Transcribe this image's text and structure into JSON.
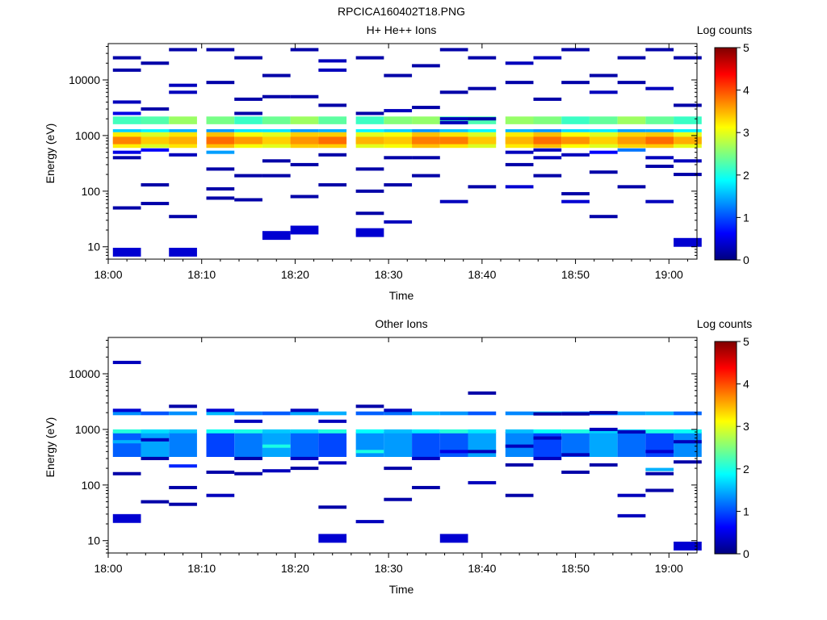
{
  "figure_title": "RPCICA160402T18.PNG",
  "colormap": {
    "stops": [
      "#00007f",
      "#0000ff",
      "#007fff",
      "#00ffff",
      "#7fff7f",
      "#ffff00",
      "#ff7f00",
      "#ff0000",
      "#7f0000"
    ],
    "tick_labels": [
      "0",
      "1",
      "2",
      "3",
      "4",
      "5"
    ],
    "range": [
      0,
      5
    ]
  },
  "chart_data": [
    {
      "type": "heatmap",
      "title": "H+ He++ Ions",
      "xlabel": "Time",
      "ylabel": "Energy (eV)",
      "colorbar_label": "Log counts",
      "x_range": [
        "18:00",
        "19:03"
      ],
      "y_range": [
        6,
        45000
      ],
      "y_scale": "log",
      "x_ticks": [
        "18:00",
        "18:10",
        "18:20",
        "18:30",
        "18:40",
        "18:50",
        "19:00"
      ],
      "y_ticks": [
        "10",
        "100",
        "1000",
        "10000"
      ],
      "time_bins": [
        "18:02",
        "18:05",
        "18:08",
        "18:12",
        "18:15",
        "18:18",
        "18:21",
        "18:24",
        "18:28",
        "18:31",
        "18:34",
        "18:37",
        "18:40",
        "18:44",
        "18:47",
        "18:50",
        "18:53",
        "18:56",
        "18:59",
        "19:02"
      ],
      "band_rows": [
        {
          "e_lo": 600,
          "e_hi": 1150,
          "value": 3.2
        },
        {
          "e_lo": 700,
          "e_hi": 950,
          "value": 3.6
        },
        {
          "e_lo": 1150,
          "e_hi": 1300,
          "value": 1.6
        },
        {
          "e_lo": 1600,
          "e_hi": 2200,
          "value": 2.4
        }
      ],
      "counts": [
        {
          "bin": 0,
          "e": 4000,
          "v": 0.3
        },
        {
          "bin": 0,
          "e": 2500,
          "v": 0.5
        },
        {
          "bin": 0,
          "e": 500,
          "v": 0.5
        },
        {
          "bin": 0,
          "e": 400,
          "v": 0.2
        },
        {
          "bin": 0,
          "e": 50,
          "v": 0.2
        },
        {
          "bin": 0,
          "e": 8,
          "v": 0.4
        },
        {
          "bin": 0,
          "e": 25000,
          "v": 0.2
        },
        {
          "bin": 0,
          "e": 15000,
          "v": 0.2
        },
        {
          "bin": 1,
          "e": 20000,
          "v": 0.2
        },
        {
          "bin": 1,
          "e": 3000,
          "v": 0.2
        },
        {
          "bin": 1,
          "e": 550,
          "v": 0.6
        },
        {
          "bin": 1,
          "e": 130,
          "v": 0.2
        },
        {
          "bin": 1,
          "e": 60,
          "v": 0.2
        },
        {
          "bin": 2,
          "e": 35000,
          "v": 0.2
        },
        {
          "bin": 2,
          "e": 8000,
          "v": 0.3
        },
        {
          "bin": 2,
          "e": 6000,
          "v": 0.3
        },
        {
          "bin": 2,
          "e": 450,
          "v": 0.3
        },
        {
          "bin": 2,
          "e": 35,
          "v": 0.2
        },
        {
          "bin": 2,
          "e": 8,
          "v": 0.4
        },
        {
          "bin": 3,
          "e": 35000,
          "v": 0.2
        },
        {
          "bin": 3,
          "e": 9000,
          "v": 0.2
        },
        {
          "bin": 3,
          "e": 500,
          "v": 1.4
        },
        {
          "bin": 3,
          "e": 250,
          "v": 0.2
        },
        {
          "bin": 3,
          "e": 110,
          "v": 0.2
        },
        {
          "bin": 3,
          "e": 75,
          "v": 0.2
        },
        {
          "bin": 4,
          "e": 25000,
          "v": 0.2
        },
        {
          "bin": 4,
          "e": 4500,
          "v": 0.2
        },
        {
          "bin": 4,
          "e": 2500,
          "v": 0.2
        },
        {
          "bin": 4,
          "e": 190,
          "v": 0.2
        },
        {
          "bin": 4,
          "e": 70,
          "v": 0.2
        },
        {
          "bin": 5,
          "e": 12000,
          "v": 0.2
        },
        {
          "bin": 5,
          "e": 5000,
          "v": 0.2
        },
        {
          "bin": 5,
          "e": 350,
          "v": 0.2
        },
        {
          "bin": 5,
          "e": 190,
          "v": 0.2
        },
        {
          "bin": 5,
          "e": 16,
          "v": 0.4
        },
        {
          "bin": 6,
          "e": 35000,
          "v": 0.2
        },
        {
          "bin": 6,
          "e": 5000,
          "v": 0.2
        },
        {
          "bin": 6,
          "e": 300,
          "v": 0.2
        },
        {
          "bin": 6,
          "e": 80,
          "v": 0.2
        },
        {
          "bin": 6,
          "e": 20,
          "v": 0.4
        },
        {
          "bin": 7,
          "e": 22000,
          "v": 0.3
        },
        {
          "bin": 7,
          "e": 15000,
          "v": 0.3
        },
        {
          "bin": 7,
          "e": 3500,
          "v": 0.2
        },
        {
          "bin": 7,
          "e": 450,
          "v": 0.2
        },
        {
          "bin": 7,
          "e": 130,
          "v": 0.2
        },
        {
          "bin": 8,
          "e": 25000,
          "v": 0.2
        },
        {
          "bin": 8,
          "e": 2500,
          "v": 0.2
        },
        {
          "bin": 8,
          "e": 250,
          "v": 0.2
        },
        {
          "bin": 8,
          "e": 100,
          "v": 0.2
        },
        {
          "bin": 8,
          "e": 40,
          "v": 0.2
        },
        {
          "bin": 8,
          "e": 18,
          "v": 0.4
        },
        {
          "bin": 9,
          "e": 12000,
          "v": 0.2
        },
        {
          "bin": 9,
          "e": 2800,
          "v": 0.3
        },
        {
          "bin": 9,
          "e": 400,
          "v": 0.2
        },
        {
          "bin": 9,
          "e": 130,
          "v": 0.2
        },
        {
          "bin": 9,
          "e": 28,
          "v": 0.3
        },
        {
          "bin": 10,
          "e": 18000,
          "v": 0.2
        },
        {
          "bin": 10,
          "e": 3200,
          "v": 0.2
        },
        {
          "bin": 10,
          "e": 400,
          "v": 0.2
        },
        {
          "bin": 10,
          "e": 190,
          "v": 0.2
        },
        {
          "bin": 11,
          "e": 35000,
          "v": 0.2
        },
        {
          "bin": 11,
          "e": 6000,
          "v": 0.2
        },
        {
          "bin": 11,
          "e": 2000,
          "v": 0.3
        },
        {
          "bin": 11,
          "e": 1700,
          "v": 0.3
        },
        {
          "bin": 11,
          "e": 65,
          "v": 0.3
        },
        {
          "bin": 12,
          "e": 25000,
          "v": 0.2
        },
        {
          "bin": 12,
          "e": 7000,
          "v": 0.2
        },
        {
          "bin": 12,
          "e": 2000,
          "v": 0.2
        },
        {
          "bin": 12,
          "e": 120,
          "v": 0.2
        },
        {
          "bin": 13,
          "e": 20000,
          "v": 0.3
        },
        {
          "bin": 13,
          "e": 9000,
          "v": 0.2
        },
        {
          "bin": 13,
          "e": 500,
          "v": 0.3
        },
        {
          "bin": 13,
          "e": 300,
          "v": 0.2
        },
        {
          "bin": 13,
          "e": 120,
          "v": 0.4
        },
        {
          "bin": 14,
          "e": 25000,
          "v": 0.3
        },
        {
          "bin": 14,
          "e": 4500,
          "v": 0.2
        },
        {
          "bin": 14,
          "e": 550,
          "v": 0.3
        },
        {
          "bin": 14,
          "e": 400,
          "v": 0.3
        },
        {
          "bin": 14,
          "e": 190,
          "v": 0.2
        },
        {
          "bin": 15,
          "e": 35000,
          "v": 0.2
        },
        {
          "bin": 15,
          "e": 9000,
          "v": 0.2
        },
        {
          "bin": 15,
          "e": 450,
          "v": 0.3
        },
        {
          "bin": 15,
          "e": 90,
          "v": 0.2
        },
        {
          "bin": 15,
          "e": 65,
          "v": 0.4
        },
        {
          "bin": 16,
          "e": 12000,
          "v": 0.2
        },
        {
          "bin": 16,
          "e": 6000,
          "v": 0.3
        },
        {
          "bin": 16,
          "e": 500,
          "v": 0.6
        },
        {
          "bin": 16,
          "e": 220,
          "v": 0.2
        },
        {
          "bin": 16,
          "e": 35,
          "v": 0.2
        },
        {
          "bin": 17,
          "e": 25000,
          "v": 0.2
        },
        {
          "bin": 17,
          "e": 9000,
          "v": 0.2
        },
        {
          "bin": 17,
          "e": 550,
          "v": 1.2
        },
        {
          "bin": 17,
          "e": 120,
          "v": 0.2
        },
        {
          "bin": 18,
          "e": 35000,
          "v": 0.2
        },
        {
          "bin": 18,
          "e": 7000,
          "v": 0.3
        },
        {
          "bin": 18,
          "e": 400,
          "v": 0.3
        },
        {
          "bin": 18,
          "e": 280,
          "v": 0.2
        },
        {
          "bin": 18,
          "e": 65,
          "v": 0.3
        },
        {
          "bin": 19,
          "e": 25000,
          "v": 0.2
        },
        {
          "bin": 19,
          "e": 3500,
          "v": 0.2
        },
        {
          "bin": 19,
          "e": 350,
          "v": 0.3
        },
        {
          "bin": 19,
          "e": 200,
          "v": 0.2
        },
        {
          "bin": 19,
          "e": 12,
          "v": 0.4
        }
      ]
    },
    {
      "type": "heatmap",
      "title": "Other Ions",
      "xlabel": "Time",
      "ylabel": "Energy (eV)",
      "colorbar_label": "Log counts",
      "x_range": [
        "18:00",
        "19:03"
      ],
      "y_range": [
        6,
        45000
      ],
      "y_scale": "log",
      "x_ticks": [
        "18:00",
        "18:10",
        "18:20",
        "18:30",
        "18:40",
        "18:50",
        "19:00"
      ],
      "y_ticks": [
        "10",
        "100",
        "1000",
        "10000"
      ],
      "time_bins": [
        "18:02",
        "18:05",
        "18:08",
        "18:12",
        "18:15",
        "18:18",
        "18:21",
        "18:24",
        "18:28",
        "18:31",
        "18:34",
        "18:37",
        "18:40",
        "18:44",
        "18:47",
        "18:50",
        "18:53",
        "18:56",
        "18:59",
        "19:02"
      ],
      "band_rows": [
        {
          "e_lo": 320,
          "e_hi": 900,
          "value": 1.2
        },
        {
          "e_lo": 850,
          "e_hi": 1000,
          "value": 1.8
        },
        {
          "e_lo": 1800,
          "e_hi": 2100,
          "value": 1.3
        }
      ],
      "counts": [
        {
          "bin": 0,
          "e": 16000,
          "v": 0.3
        },
        {
          "bin": 0,
          "e": 2200,
          "v": 0.4
        },
        {
          "bin": 0,
          "e": 600,
          "v": 1.5
        },
        {
          "bin": 0,
          "e": 160,
          "v": 0.2
        },
        {
          "bin": 0,
          "e": 25,
          "v": 0.4
        },
        {
          "bin": 1,
          "e": 650,
          "v": 0.3
        },
        {
          "bin": 1,
          "e": 300,
          "v": 0.2
        },
        {
          "bin": 1,
          "e": 50,
          "v": 0.2
        },
        {
          "bin": 2,
          "e": 2600,
          "v": 0.2
        },
        {
          "bin": 2,
          "e": 220,
          "v": 0.8
        },
        {
          "bin": 2,
          "e": 90,
          "v": 0.2
        },
        {
          "bin": 2,
          "e": 45,
          "v": 0.2
        },
        {
          "bin": 3,
          "e": 2200,
          "v": 0.4
        },
        {
          "bin": 3,
          "e": 170,
          "v": 0.2
        },
        {
          "bin": 3,
          "e": 65,
          "v": 0.3
        },
        {
          "bin": 4,
          "e": 1400,
          "v": 0.3
        },
        {
          "bin": 4,
          "e": 300,
          "v": 0.2
        },
        {
          "bin": 4,
          "e": 160,
          "v": 0.2
        },
        {
          "bin": 5,
          "e": 500,
          "v": 2.0
        },
        {
          "bin": 5,
          "e": 180,
          "v": 0.3
        },
        {
          "bin": 6,
          "e": 2200,
          "v": 0.3
        },
        {
          "bin": 6,
          "e": 300,
          "v": 0.3
        },
        {
          "bin": 6,
          "e": 200,
          "v": 0.2
        },
        {
          "bin": 7,
          "e": 1400,
          "v": 0.3
        },
        {
          "bin": 7,
          "e": 250,
          "v": 0.3
        },
        {
          "bin": 7,
          "e": 40,
          "v": 0.2
        },
        {
          "bin": 7,
          "e": 11,
          "v": 0.4
        },
        {
          "bin": 8,
          "e": 2600,
          "v": 0.2
        },
        {
          "bin": 8,
          "e": 400,
          "v": 2.0
        },
        {
          "bin": 8,
          "e": 22,
          "v": 0.3
        },
        {
          "bin": 9,
          "e": 2200,
          "v": 0.3
        },
        {
          "bin": 9,
          "e": 200,
          "v": 0.2
        },
        {
          "bin": 9,
          "e": 55,
          "v": 0.2
        },
        {
          "bin": 10,
          "e": 300,
          "v": 0.3
        },
        {
          "bin": 10,
          "e": 90,
          "v": 0.2
        },
        {
          "bin": 11,
          "e": 400,
          "v": 0.5
        },
        {
          "bin": 11,
          "e": 11,
          "v": 0.4
        },
        {
          "bin": 12,
          "e": 4500,
          "v": 0.2
        },
        {
          "bin": 12,
          "e": 400,
          "v": 0.3
        },
        {
          "bin": 12,
          "e": 110,
          "v": 0.3
        },
        {
          "bin": 13,
          "e": 500,
          "v": 0.3
        },
        {
          "bin": 13,
          "e": 230,
          "v": 0.2
        },
        {
          "bin": 13,
          "e": 65,
          "v": 0.2
        },
        {
          "bin": 14,
          "e": 1900,
          "v": 0.2
        },
        {
          "bin": 14,
          "e": 700,
          "v": 0.3
        },
        {
          "bin": 14,
          "e": 300,
          "v": 0.3
        },
        {
          "bin": 15,
          "e": 1900,
          "v": 0.2
        },
        {
          "bin": 15,
          "e": 350,
          "v": 0.3
        },
        {
          "bin": 15,
          "e": 170,
          "v": 0.2
        },
        {
          "bin": 16,
          "e": 2000,
          "v": 0.2
        },
        {
          "bin": 16,
          "e": 1000,
          "v": 0.3
        },
        {
          "bin": 16,
          "e": 230,
          "v": 0.2
        },
        {
          "bin": 17,
          "e": 900,
          "v": 0.3
        },
        {
          "bin": 17,
          "e": 65,
          "v": 0.3
        },
        {
          "bin": 17,
          "e": 28,
          "v": 0.3
        },
        {
          "bin": 18,
          "e": 400,
          "v": 0.4
        },
        {
          "bin": 18,
          "e": 190,
          "v": 1.5
        },
        {
          "bin": 18,
          "e": 160,
          "v": 0.2
        },
        {
          "bin": 18,
          "e": 80,
          "v": 0.2
        },
        {
          "bin": 19,
          "e": 600,
          "v": 0.3
        },
        {
          "bin": 19,
          "e": 260,
          "v": 0.2
        },
        {
          "bin": 19,
          "e": 8,
          "v": 0.4
        }
      ]
    }
  ]
}
